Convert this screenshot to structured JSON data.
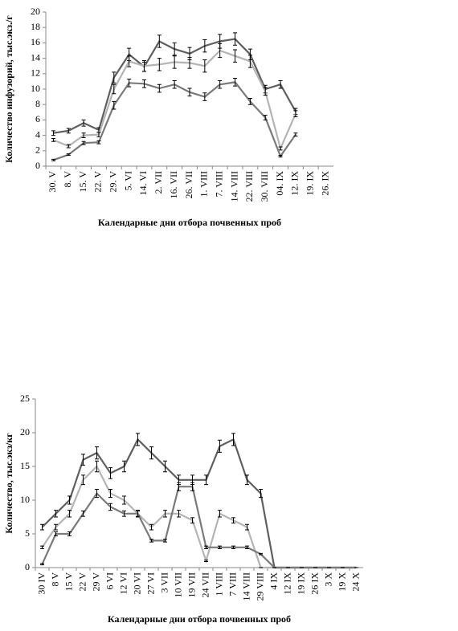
{
  "chart_data": [
    {
      "type": "line",
      "y_label": "Количество инфузорий, тыс.экз./г",
      "x_label": "Календарные дни отбора почвенных проб",
      "categories": [
        "30. V",
        "8. V",
        "15. V",
        "22. V",
        "29. V",
        "5. VI",
        "14. VI",
        "2. VII",
        "16. VII",
        "26. VII",
        "1. VIII",
        "7. VIII",
        "14. VIII",
        "22. VIII",
        "30. VIII",
        "04. IX",
        "12. IX",
        "19. IX",
        "26. IX"
      ],
      "series": [
        {
          "color": "#5f5f5f",
          "values": [
            4.3,
            4.6,
            5.6,
            4.7,
            11.5,
            14.5,
            12.9,
            16.2,
            15.2,
            14.6,
            15.6,
            16.2,
            16.5,
            14.5,
            10,
            10.6,
            7.1,
            null,
            null
          ],
          "errors": [
            0.3,
            0.3,
            0.4,
            0.3,
            0.7,
            0.8,
            0.6,
            0.8,
            0.8,
            0.8,
            0.8,
            0.9,
            0.8,
            0.7,
            0.5,
            0.5,
            0.4,
            null,
            null
          ]
        },
        {
          "color": "#b4b4b4",
          "values": [
            3.4,
            2.6,
            4,
            4.1,
            10,
            13.6,
            13,
            13.2,
            13.5,
            13.4,
            13,
            15,
            14.3,
            13.6,
            9.7,
            2.3,
            6.8,
            null,
            null
          ],
          "errors": [
            0.2,
            0.2,
            0.3,
            0.3,
            0.6,
            0.7,
            0.7,
            0.8,
            0.8,
            0.7,
            0.8,
            0.9,
            0.8,
            0.8,
            0.5,
            0.2,
            0.4,
            null,
            null
          ]
        },
        {
          "color": "#7a7a7a",
          "values": [
            0.8,
            1.5,
            3,
            3.1,
            7.9,
            10.8,
            10.7,
            10.1,
            10.6,
            9.6,
            9,
            10.6,
            10.9,
            8.4,
            6.3,
            1.3,
            4.1,
            null,
            null
          ],
          "errors": [
            0.1,
            0.1,
            0.2,
            0.2,
            0.5,
            0.5,
            0.5,
            0.5,
            0.5,
            0.5,
            0.5,
            0.5,
            0.5,
            0.4,
            0.3,
            0.1,
            0.2,
            null,
            null
          ]
        }
      ],
      "ylim": [
        0,
        20
      ],
      "yticks": [
        0,
        2,
        4,
        6,
        8,
        10,
        12,
        14,
        16,
        18,
        20
      ]
    },
    {
      "type": "line",
      "y_label": "Количество, тыс.экз/кг",
      "x_label": "Календарные дни отбора почвенных проб",
      "categories": [
        "30 IV",
        "8 V",
        "15 V",
        "22 V",
        "29 V",
        "6 VI",
        "12 VI",
        "20 VI",
        "27 VI",
        "3 VII",
        "10 VII",
        "19 VII",
        "24 VII",
        "1 VIII",
        "7 VIII",
        "14 VIII",
        "29 VIII",
        "4 IX",
        "12 IX",
        "19 IX",
        "26 IX",
        "3 X",
        "19 X",
        "24 X"
      ],
      "series": [
        {
          "color": "#5f5f5f",
          "values": [
            6,
            8,
            10,
            16,
            17,
            14,
            15,
            19,
            17,
            15,
            13,
            13,
            13,
            18,
            19,
            13,
            11,
            0,
            0,
            0,
            0,
            0,
            0,
            0
          ],
          "errors": [
            0.4,
            0.5,
            0.6,
            0.8,
            0.9,
            0.8,
            0.8,
            0.9,
            0.9,
            0.8,
            0.7,
            0.7,
            0.7,
            0.9,
            0.9,
            0.7,
            0.6,
            0,
            0,
            0,
            0,
            0,
            0,
            0
          ]
        },
        {
          "color": "#b4b4b4",
          "values": [
            3,
            6,
            8,
            13,
            15,
            11,
            10,
            8,
            6,
            8,
            8,
            7,
            1,
            8,
            7,
            6,
            0,
            0,
            0,
            0,
            0,
            0,
            0,
            0
          ],
          "errors": [
            0.2,
            0.4,
            0.5,
            0.7,
            0.8,
            0.6,
            0.6,
            0.5,
            0.4,
            0.5,
            0.5,
            0.4,
            0.1,
            0.5,
            0.4,
            0.4,
            0,
            0,
            0,
            0,
            0,
            0,
            0,
            0
          ]
        },
        {
          "color": "#7a7a7a",
          "values": [
            0.5,
            5,
            5,
            8,
            11,
            9,
            8,
            8,
            4,
            4,
            12,
            12,
            3,
            3,
            3,
            3,
            2,
            0,
            0,
            0,
            0,
            0,
            0,
            0
          ],
          "errors": [
            0.1,
            0.3,
            0.3,
            0.4,
            0.6,
            0.5,
            0.4,
            0.4,
            0.2,
            0.2,
            0.6,
            0.6,
            0.2,
            0.2,
            0.2,
            0.2,
            0.1,
            0,
            0,
            0,
            0,
            0,
            0,
            0
          ]
        }
      ],
      "ylim": [
        0,
        25
      ],
      "yticks": [
        0,
        5,
        10,
        15,
        20,
        25
      ]
    }
  ]
}
